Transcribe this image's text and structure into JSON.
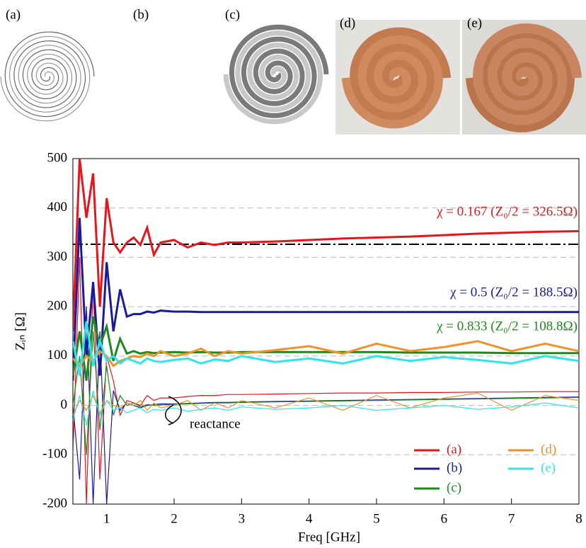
{
  "panels": [
    "(a)",
    "(b)",
    "(c)",
    "(d)",
    "(e)"
  ],
  "chart_data": {
    "type": "line",
    "xlabel": "Freq [GHz]",
    "ylabel": "Zᵢₙ [Ω]",
    "xlim": [
      0.5,
      8
    ],
    "xticks": [
      1,
      2,
      3,
      4,
      5,
      6,
      7,
      8
    ],
    "ylim": [
      -200,
      500
    ],
    "yticks": [
      -200,
      -100,
      0,
      100,
      200,
      300,
      400,
      500
    ],
    "grid": true,
    "hline": 326.5,
    "legend": "lower right",
    "annotations": [
      {
        "text": "χ = 0.167 (Z₀/2 = 326.5Ω)",
        "color": "#e8141c"
      },
      {
        "text": "χ = 0.5 (Z₀/2 = 188.5Ω)",
        "color": "#1a1a9e"
      },
      {
        "text": "χ = 0.833 (Z₀/2 = 108.8Ω)",
        "color": "#1b8a1b"
      },
      {
        "text": "reactance",
        "color": "#000000"
      }
    ],
    "x": [
      0.5,
      0.6,
      0.7,
      0.8,
      0.9,
      1.0,
      1.1,
      1.2,
      1.3,
      1.4,
      1.5,
      1.6,
      1.7,
      1.8,
      2.0,
      2.2,
      2.4,
      2.6,
      2.8,
      3.0,
      3.5,
      4.0,
      4.5,
      5.0,
      5.5,
      6.0,
      6.5,
      7.0,
      7.5,
      8.0
    ],
    "series": [
      {
        "name": "(a)",
        "color": "#e8141c",
        "values": [
          150,
          500,
          380,
          470,
          200,
          420,
          330,
          310,
          330,
          340,
          325,
          360,
          305,
          330,
          335,
          320,
          330,
          325,
          330,
          330,
          332,
          335,
          338,
          340,
          342,
          345,
          348,
          350,
          352,
          353
        ],
        "reactance": [
          -100,
          300,
          -200,
          250,
          -150,
          100,
          50,
          -20,
          10,
          5,
          0,
          20,
          10,
          15,
          15,
          18,
          20,
          20,
          22,
          22,
          23,
          24,
          25,
          25,
          26,
          26,
          27,
          27,
          28,
          28
        ]
      },
      {
        "name": "(b)",
        "color": "#1a1a9e",
        "values": [
          50,
          380,
          100,
          250,
          60,
          290,
          150,
          235,
          180,
          185,
          185,
          190,
          188,
          192,
          190,
          190,
          189,
          189,
          189,
          189,
          189,
          189,
          189,
          189,
          189,
          189,
          189,
          189,
          189,
          189
        ],
        "reactance": [
          0,
          -150,
          200,
          -200,
          150,
          -200,
          30,
          -10,
          5,
          0,
          -5,
          0,
          2,
          3,
          3,
          4,
          5,
          6,
          6,
          7,
          8,
          9,
          10,
          11,
          12,
          13,
          14,
          15,
          16,
          17
        ]
      },
      {
        "name": "(c)",
        "color": "#1b8a1b",
        "values": [
          60,
          150,
          50,
          180,
          120,
          160,
          90,
          135,
          105,
          110,
          105,
          108,
          106,
          107,
          108,
          107,
          108,
          107,
          107,
          108,
          108,
          108,
          108,
          108,
          107,
          107,
          107,
          106,
          106,
          106
        ],
        "reactance": [
          0,
          100,
          -100,
          150,
          -50,
          80,
          -20,
          20,
          0,
          5,
          -3,
          2,
          0,
          1,
          2,
          3,
          4,
          5,
          5,
          6,
          7,
          8,
          9,
          10,
          11,
          12,
          13,
          14,
          15,
          16
        ]
      },
      {
        "name": "(d)",
        "color": "#f0922a",
        "values": [
          95,
          80,
          100,
          90,
          110,
          100,
          80,
          90,
          95,
          100,
          98,
          105,
          100,
          110,
          100,
          105,
          115,
          100,
          110,
          105,
          112,
          120,
          105,
          125,
          110,
          118,
          130,
          110,
          125,
          110
        ],
        "reactance": [
          -20,
          10,
          -10,
          20,
          -15,
          10,
          0,
          -5,
          5,
          0,
          10,
          -10,
          5,
          -5,
          0,
          10,
          -10,
          5,
          -5,
          10,
          -5,
          15,
          -10,
          20,
          -5,
          15,
          25,
          -10,
          20,
          10
        ]
      },
      {
        "name": "(e)",
        "color": "#2ee6ea",
        "values": [
          130,
          60,
          170,
          80,
          130,
          90,
          100,
          85,
          95,
          90,
          85,
          95,
          90,
          88,
          92,
          95,
          85,
          93,
          90,
          100,
          88,
          95,
          85,
          100,
          90,
          98,
          92,
          85,
          100,
          90
        ],
        "reactance": [
          -30,
          20,
          -40,
          30,
          -20,
          10,
          -10,
          -5,
          -15,
          -10,
          -5,
          -15,
          -8,
          -10,
          -5,
          -12,
          -8,
          -5,
          -10,
          -3,
          -8,
          -5,
          0,
          -10,
          -5,
          0,
          -8,
          -3,
          5,
          -5
        ]
      }
    ]
  }
}
